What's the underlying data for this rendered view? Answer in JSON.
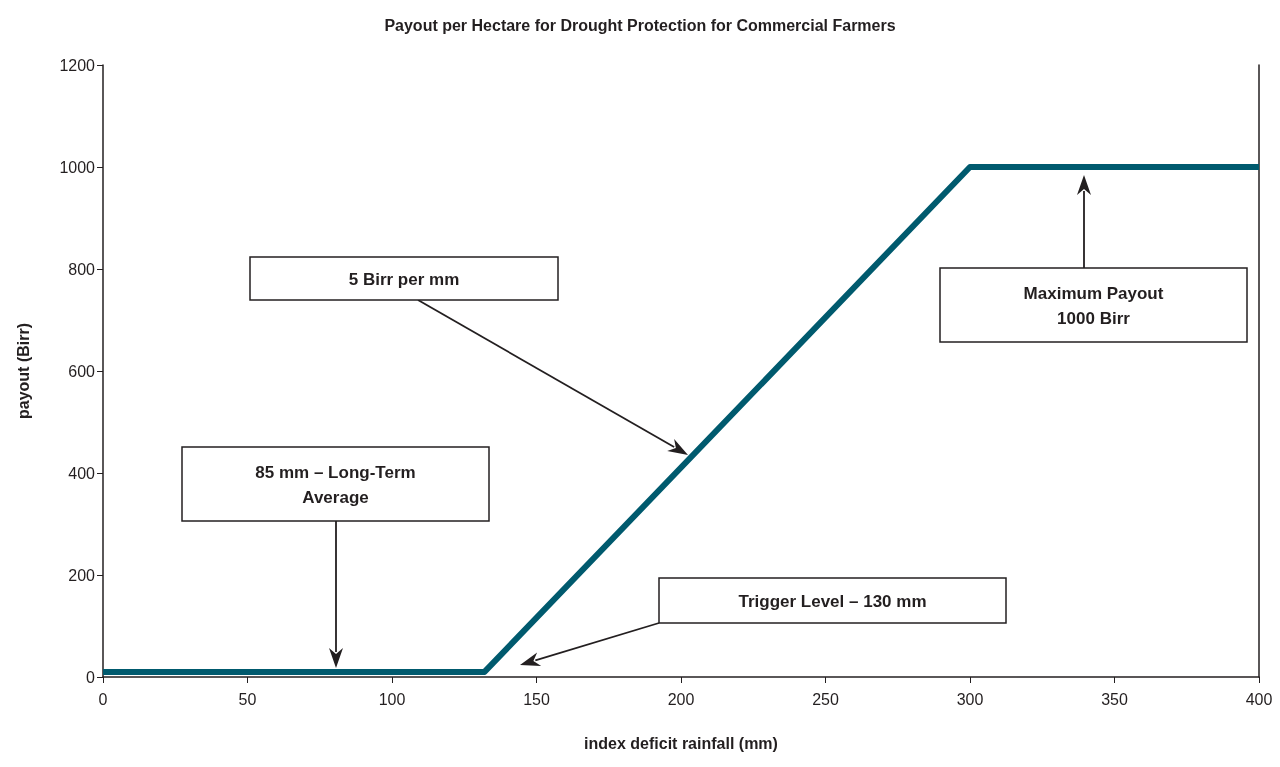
{
  "chart_data": {
    "type": "line",
    "title": "Payout per Hectare for Drought Protection for Commercial Farmers",
    "xlabel": "index deficit rainfall (mm)",
    "ylabel": "payout (Birr)",
    "x": [
      0,
      132,
      300,
      400
    ],
    "series": [
      {
        "color": "#005a6e",
        "values": [
          10,
          10,
          1000,
          1000
        ]
      }
    ],
    "xlim": [
      0,
      400
    ],
    "xticks": [
      0,
      50,
      100,
      150,
      200,
      250,
      300,
      350,
      400
    ],
    "ylim": [
      0,
      1200
    ],
    "yticks": [
      0,
      200,
      400,
      600,
      800,
      1000,
      1200
    ],
    "grid": false,
    "marker": "none",
    "line_style": "solid",
    "annotations": [
      "5 Birr per mm",
      "85 mm – Long-Term\nAverage",
      "Trigger Level – 130 mm",
      "Maximum Payout\n1000 Birr"
    ]
  }
}
